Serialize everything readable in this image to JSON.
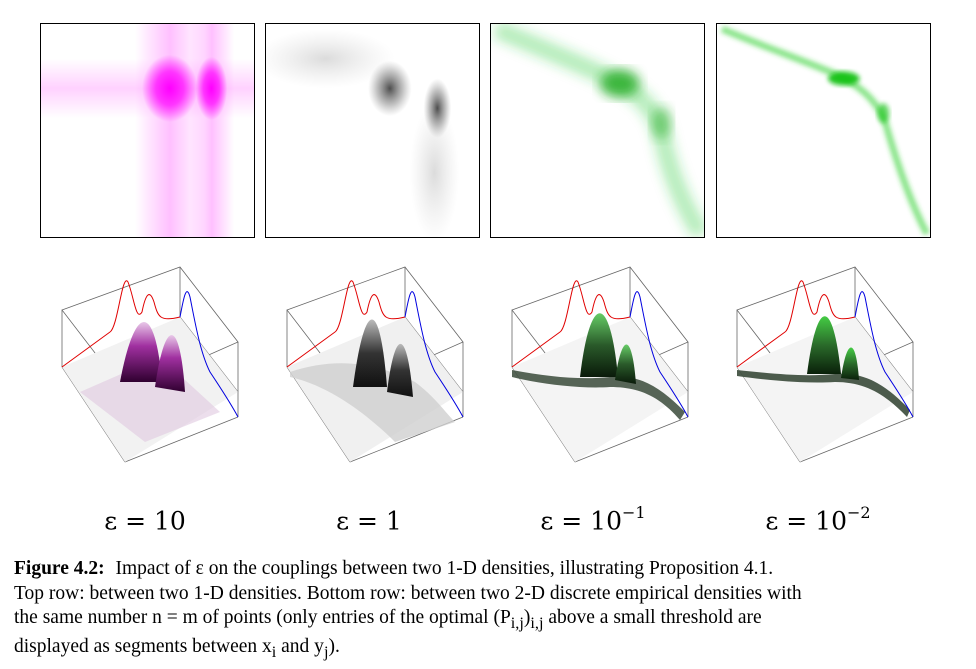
{
  "panels_top": [
    {
      "label_index": 0,
      "color": "#ff00ff"
    },
    {
      "label_index": 1,
      "color": "#555555"
    },
    {
      "label_index": 2,
      "color": "#1ec81e"
    },
    {
      "label_index": 3,
      "color": "#10d010"
    }
  ],
  "panels_bottom": [
    {
      "surface_color": "#a020a0"
    },
    {
      "surface_color": "#444444"
    },
    {
      "surface_color": "#2e6b2e"
    },
    {
      "surface_color": "#2e7a2e"
    }
  ],
  "marginal_colors": {
    "source": "#e00000",
    "target": "#0000e0"
  },
  "epsilon_labels": [
    {
      "base": "ε = 10",
      "exp": ""
    },
    {
      "base": "ε = 1",
      "exp": ""
    },
    {
      "base": "ε = 10",
      "exp": "−1"
    },
    {
      "base": "ε = 10",
      "exp": "−2"
    }
  ],
  "caption": {
    "label": "Figure 4.2:",
    "line1": "Impact of ε on the couplings between two 1-D densities, illustrating Proposition 4.1.",
    "line2": "Top row: between two 1-D densities. Bottom row: between two 2-D discrete empirical densities with",
    "line3": "the same number n = m of points (only entries of the optimal (P",
    "line3_sub": "i,j",
    "line3_mid": ")",
    "line3_sub2": "i,j",
    "line3_end": " above a small threshold are",
    "line4": "displayed as segments between x",
    "line4_sub1": "i",
    "line4_mid": " and y",
    "line4_sub2": "j",
    "line4_end": ")."
  }
}
